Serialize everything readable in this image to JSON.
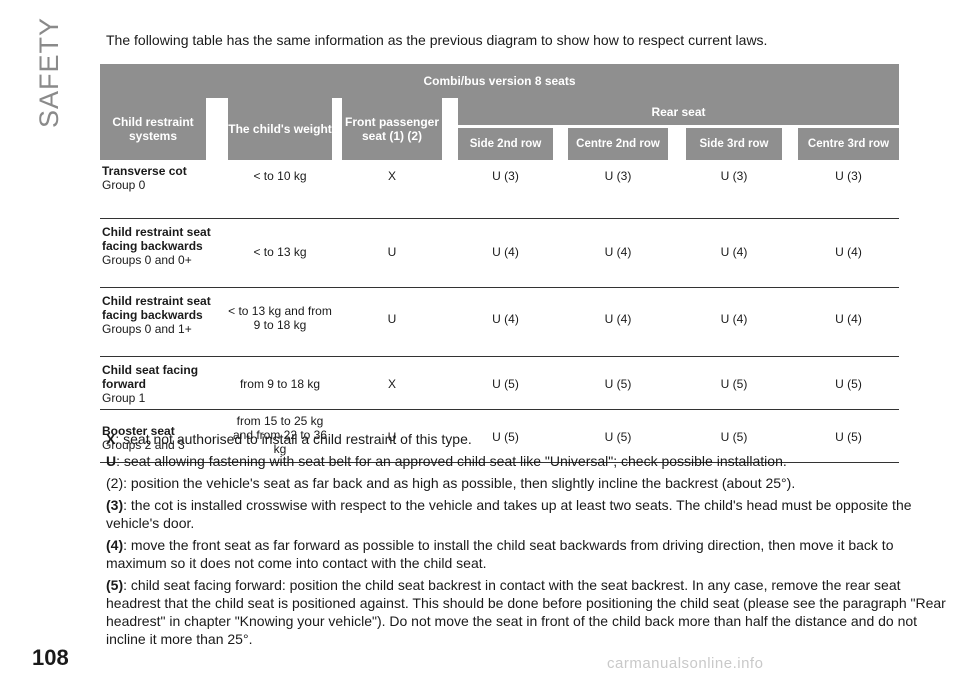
{
  "section_label": "SAFETY",
  "intro": "The following table has the same information as the previous diagram to show how to respect current laws.",
  "table": {
    "title": "Combi/bus version 8 seats",
    "headers": {
      "child_restraint_systems": "Child restraint systems",
      "childs_weight": "The child's weight",
      "front_passenger_seat": "Front passenger seat (1) (2)",
      "rear_seat": "Rear seat",
      "side_2nd_row": "Side 2nd row",
      "centre_2nd_row": "Centre 2nd row",
      "side_3rd_row": "Side 3rd row",
      "centre_3rd_row": "Centre 3rd row"
    },
    "rows": [
      {
        "name": "Transverse cot",
        "group": "Group 0",
        "weight": "< to 10 kg",
        "front": "X",
        "s2": "U (3)",
        "c2": "U (3)",
        "s3": "U (3)",
        "c3": "U (3)"
      },
      {
        "name": "Child restraint seat facing backwards",
        "group": "Groups 0 and 0+",
        "weight": "< to 13 kg",
        "front": "U",
        "s2": "U (4)",
        "c2": "U (4)",
        "s3": "U (4)",
        "c3": "U (4)"
      },
      {
        "name": "Child restraint seat facing backwards",
        "group": "Groups 0 and 1+",
        "weight": "< to 13 kg and from 9 to 18 kg",
        "front": "U",
        "s2": "U (4)",
        "c2": "U (4)",
        "s3": "U (4)",
        "c3": "U (4)"
      },
      {
        "name": "Child seat facing forward",
        "group": "Group 1",
        "weight": "from 9 to 18 kg",
        "front": "X",
        "s2": "U (5)",
        "c2": "U (5)",
        "s3": "U (5)",
        "c3": "U (5)"
      },
      {
        "name": "Booster seat",
        "group": "Groups 2 and 3",
        "weight": "from 15 to 25 kg and from 22 to 36 kg",
        "front": "U",
        "s2": "U (5)",
        "c2": "U (5)",
        "s3": "U (5)",
        "c3": "U (5)"
      }
    ]
  },
  "notes": [
    {
      "key": "X",
      "text": ": seat not authorised to install a child restraint of this type."
    },
    {
      "key": "U",
      "text": ": seat allowing fastening with seat belt for an approved child seat like \"Universal\"; check possible installation."
    },
    {
      "key": "",
      "text": "(2): position the vehicle's seat as far back and as high as possible, then slightly incline the backrest (about 25°)."
    },
    {
      "key": "(3)",
      "text": ": the cot is installed crosswise with respect to the vehicle and takes up at least two seats. The child's head must be opposite the vehicle's door."
    },
    {
      "key": "(4)",
      "text": ": move the front seat as far forward as possible to install the child seat backwards from driving direction, then move it back to maximum so it does not come into contact with the child seat."
    },
    {
      "key": "(5)",
      "text": ": child seat facing forward: position the child seat backrest in contact with the seat backrest. In any case, remove the rear seat headrest that the child seat is positioned against. This should be done before positioning the child seat (please see the paragraph \"Rear headrest\" in chapter \"Knowing your vehicle\"). Do not move the seat in front of the child back more than half the distance and do not incline it more than 25°."
    }
  ],
  "page_number": "108",
  "watermark": "carmanualsonline.info"
}
